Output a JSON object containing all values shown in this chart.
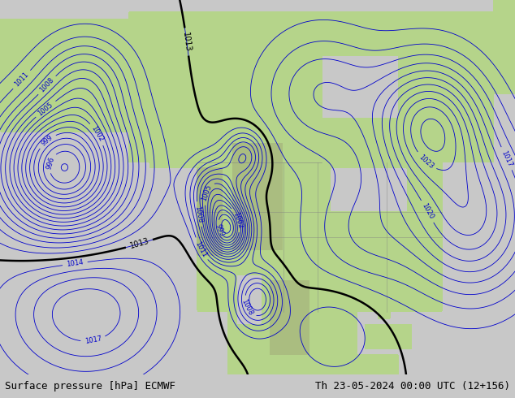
{
  "title_left": "Surface pressure [hPa] ECMWF",
  "title_right": "Th 23-05-2024 00:00 UTC (12+156)",
  "fig_width": 6.34,
  "fig_height": 4.9,
  "dpi": 100,
  "footer_fontsize": 9,
  "footer_bg": "#c8c8c8",
  "land_color": "#b5d48a",
  "ocean_color": "#d2d2d2",
  "water_body_color": "#aaaacc",
  "mountain_color": "#a0a080",
  "contour_blue_color": "#0000cc",
  "contour_red_color": "#cc0000",
  "contour_black_color": "#000000",
  "contour_label_fontsize": 6,
  "isobar_step": 1,
  "blue_range": [
    994,
    1026
  ],
  "red_range": [
    960,
    994
  ],
  "black_isobars": [
    1013
  ]
}
